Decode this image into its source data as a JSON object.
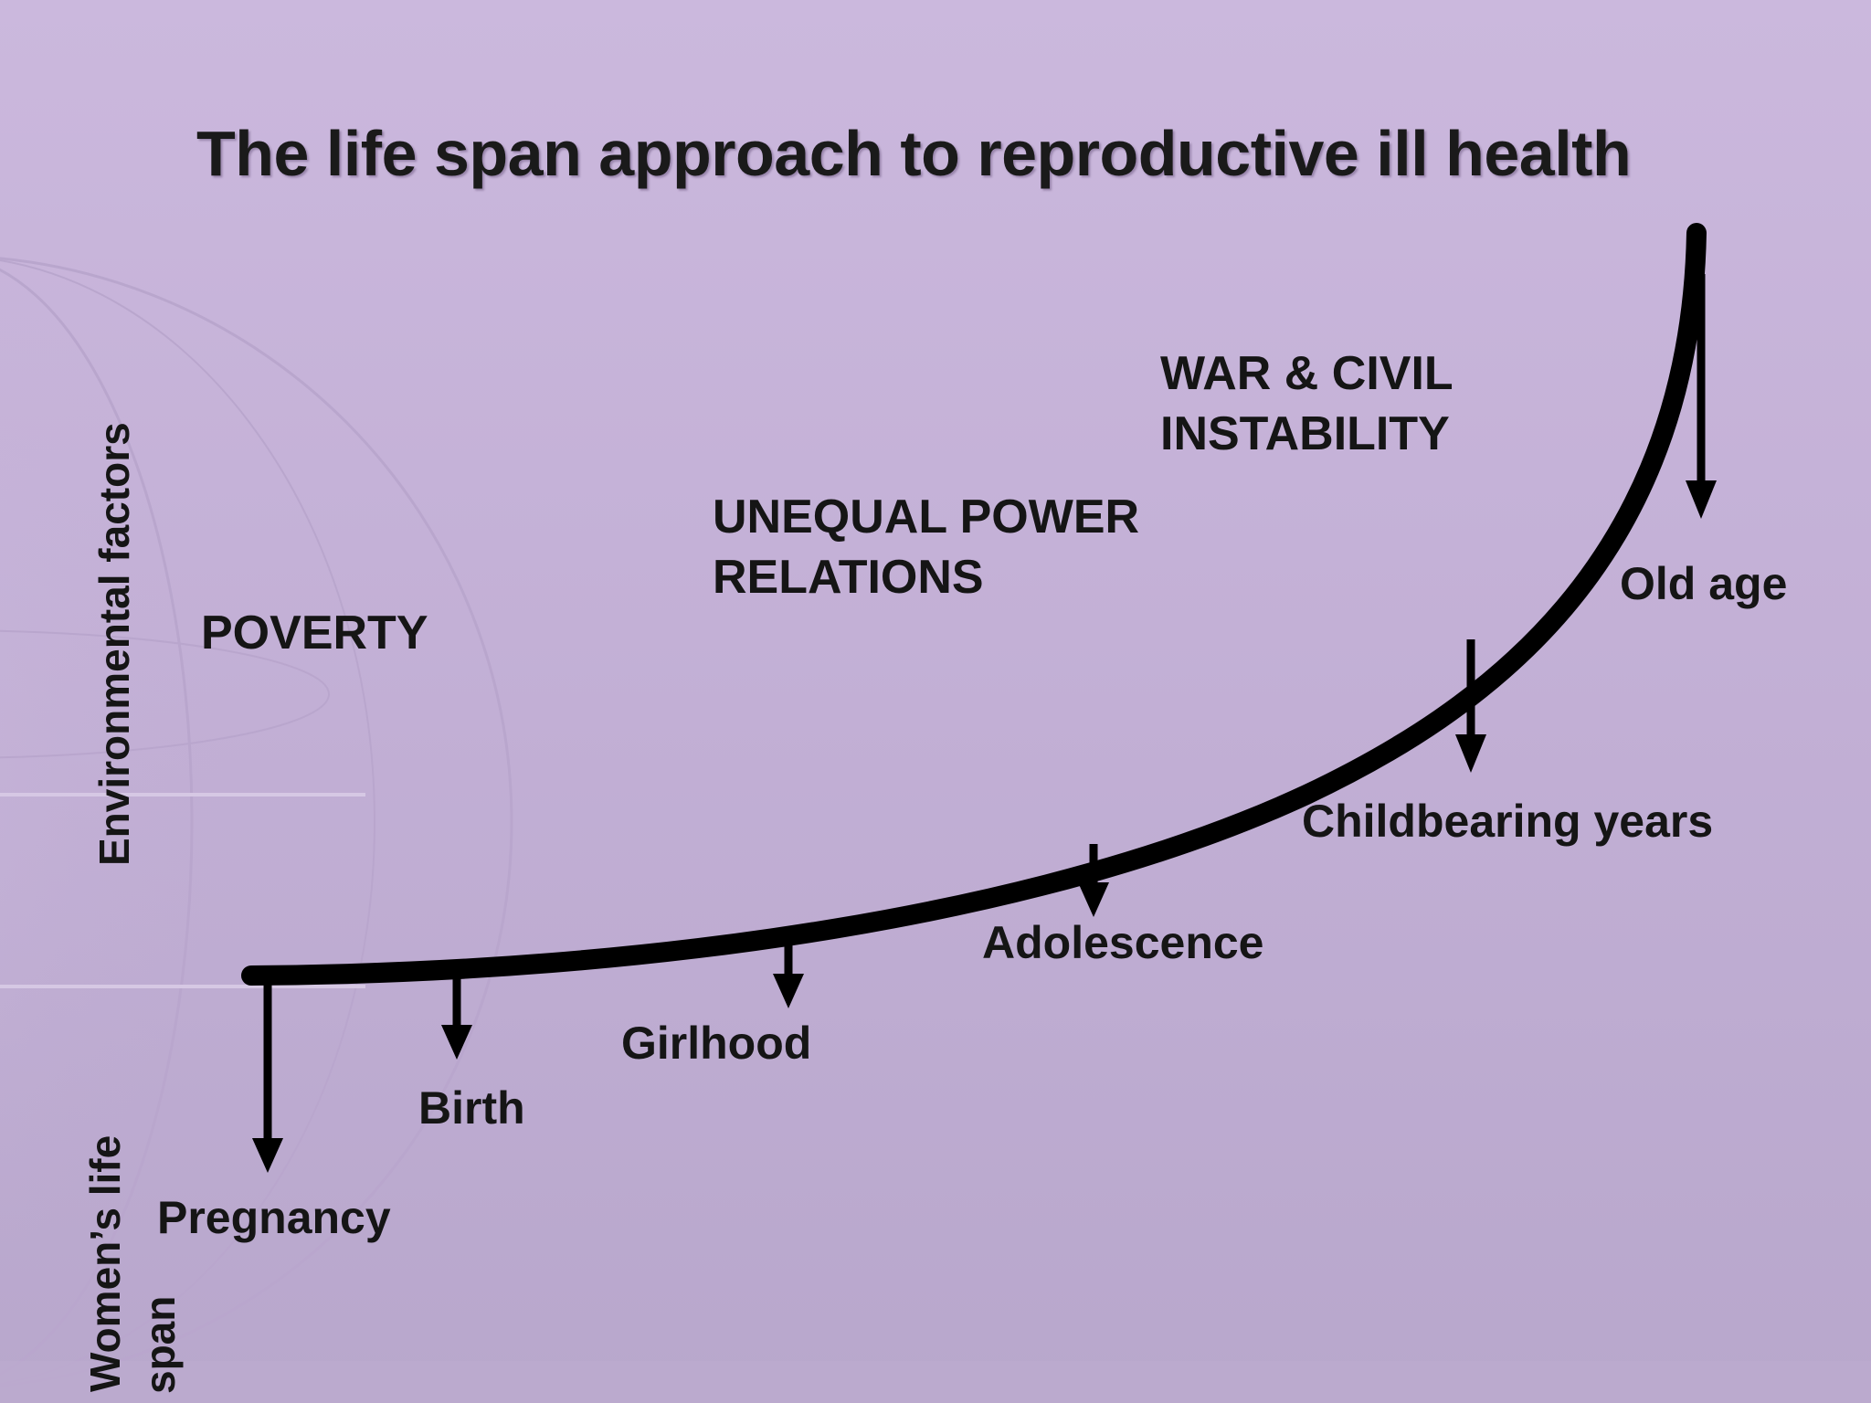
{
  "title": "The life span approach to reproductive ill health",
  "axes": {
    "y_label": "Environmental factors",
    "x_label_line1": "Women’s life",
    "x_label_line2": "span"
  },
  "factors": {
    "poverty": "POVERTY",
    "unequal_line1": "UNEQUAL POWER",
    "unequal_line2": "RELATIONS",
    "war_line1": "WAR & CIVIL",
    "war_line2": "INSTABILITY"
  },
  "stages": {
    "pregnancy": "Pregnancy",
    "birth": "Birth",
    "girlhood": "Girlhood",
    "adolescence": "Adolescence",
    "childbearing": "Childbearing years",
    "old_age": "Old age"
  },
  "colors": {
    "background": "#c3b0d6",
    "curve": "#000000",
    "text": "#151515"
  }
}
